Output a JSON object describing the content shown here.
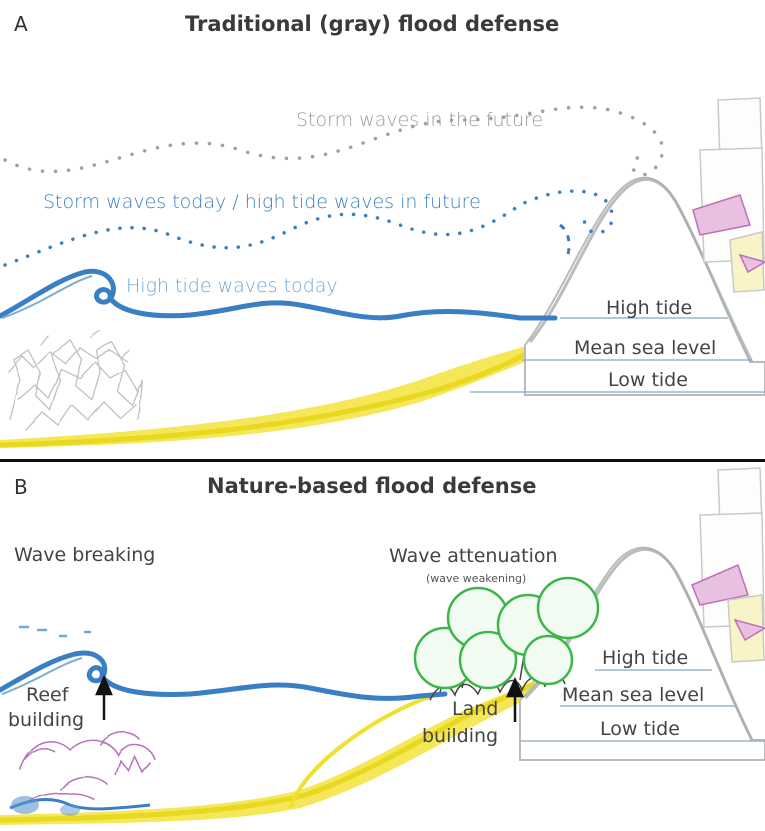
{
  "panel_a": {
    "letter": "A",
    "title": "Traditional (gray) flood defense",
    "wave_labels": {
      "future": "Storm waves in the future",
      "today_storm": "Storm waves today / high tide waves in future",
      "today_high": "High tide waves today"
    },
    "tides": {
      "high": "High tide",
      "mean": "Mean sea level",
      "low": "Low tide"
    }
  },
  "panel_b": {
    "letter": "B",
    "title": "Nature-based flood defense",
    "wave_breaking": "Wave breaking",
    "wave_attenuation": "Wave attenuation",
    "wave_weakening": "(wave weakening)",
    "reef_line1": "Reef",
    "reef_line2": "building",
    "land_line1": "Land",
    "land_line2": "building",
    "tides": {
      "high": "High tide",
      "mean": "Mean sea level",
      "low": "Low tide"
    }
  },
  "colors": {
    "water": "#3a7fc4",
    "water_light": "#6fa8d8",
    "sand": "#f0e030",
    "gray_dots": "#b0b0b0",
    "tree_green": "#3cb54a",
    "coral_pink": "#c080c8"
  }
}
